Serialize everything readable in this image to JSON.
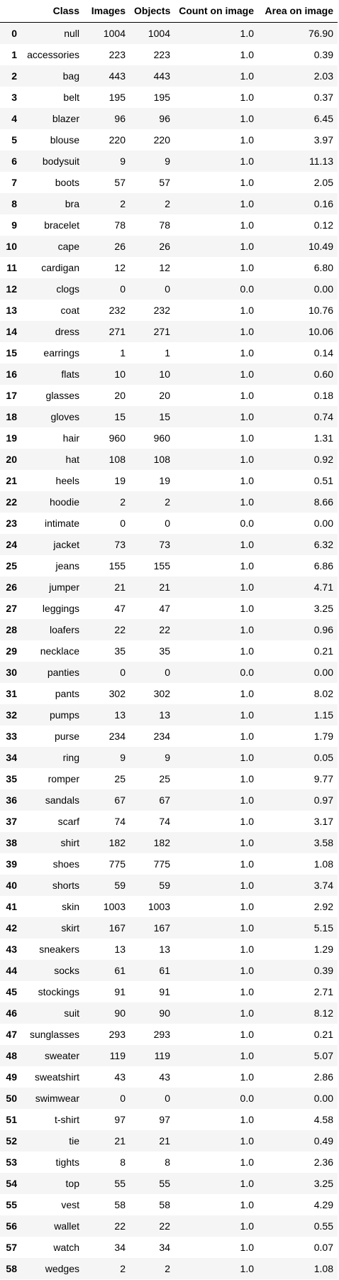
{
  "columns": [
    "",
    "Class",
    "Images",
    "Objects",
    "Count on image",
    "Area on image"
  ],
  "rows": [
    [
      "0",
      "null",
      "1004",
      "1004",
      "1.0",
      "76.90"
    ],
    [
      "1",
      "accessories",
      "223",
      "223",
      "1.0",
      "0.39"
    ],
    [
      "2",
      "bag",
      "443",
      "443",
      "1.0",
      "2.03"
    ],
    [
      "3",
      "belt",
      "195",
      "195",
      "1.0",
      "0.37"
    ],
    [
      "4",
      "blazer",
      "96",
      "96",
      "1.0",
      "6.45"
    ],
    [
      "5",
      "blouse",
      "220",
      "220",
      "1.0",
      "3.97"
    ],
    [
      "6",
      "bodysuit",
      "9",
      "9",
      "1.0",
      "11.13"
    ],
    [
      "7",
      "boots",
      "57",
      "57",
      "1.0",
      "2.05"
    ],
    [
      "8",
      "bra",
      "2",
      "2",
      "1.0",
      "0.16"
    ],
    [
      "9",
      "bracelet",
      "78",
      "78",
      "1.0",
      "0.12"
    ],
    [
      "10",
      "cape",
      "26",
      "26",
      "1.0",
      "10.49"
    ],
    [
      "11",
      "cardigan",
      "12",
      "12",
      "1.0",
      "6.80"
    ],
    [
      "12",
      "clogs",
      "0",
      "0",
      "0.0",
      "0.00"
    ],
    [
      "13",
      "coat",
      "232",
      "232",
      "1.0",
      "10.76"
    ],
    [
      "14",
      "dress",
      "271",
      "271",
      "1.0",
      "10.06"
    ],
    [
      "15",
      "earrings",
      "1",
      "1",
      "1.0",
      "0.14"
    ],
    [
      "16",
      "flats",
      "10",
      "10",
      "1.0",
      "0.60"
    ],
    [
      "17",
      "glasses",
      "20",
      "20",
      "1.0",
      "0.18"
    ],
    [
      "18",
      "gloves",
      "15",
      "15",
      "1.0",
      "0.74"
    ],
    [
      "19",
      "hair",
      "960",
      "960",
      "1.0",
      "1.31"
    ],
    [
      "20",
      "hat",
      "108",
      "108",
      "1.0",
      "0.92"
    ],
    [
      "21",
      "heels",
      "19",
      "19",
      "1.0",
      "0.51"
    ],
    [
      "22",
      "hoodie",
      "2",
      "2",
      "1.0",
      "8.66"
    ],
    [
      "23",
      "intimate",
      "0",
      "0",
      "0.0",
      "0.00"
    ],
    [
      "24",
      "jacket",
      "73",
      "73",
      "1.0",
      "6.32"
    ],
    [
      "25",
      "jeans",
      "155",
      "155",
      "1.0",
      "6.86"
    ],
    [
      "26",
      "jumper",
      "21",
      "21",
      "1.0",
      "4.71"
    ],
    [
      "27",
      "leggings",
      "47",
      "47",
      "1.0",
      "3.25"
    ],
    [
      "28",
      "loafers",
      "22",
      "22",
      "1.0",
      "0.96"
    ],
    [
      "29",
      "necklace",
      "35",
      "35",
      "1.0",
      "0.21"
    ],
    [
      "30",
      "panties",
      "0",
      "0",
      "0.0",
      "0.00"
    ],
    [
      "31",
      "pants",
      "302",
      "302",
      "1.0",
      "8.02"
    ],
    [
      "32",
      "pumps",
      "13",
      "13",
      "1.0",
      "1.15"
    ],
    [
      "33",
      "purse",
      "234",
      "234",
      "1.0",
      "1.79"
    ],
    [
      "34",
      "ring",
      "9",
      "9",
      "1.0",
      "0.05"
    ],
    [
      "35",
      "romper",
      "25",
      "25",
      "1.0",
      "9.77"
    ],
    [
      "36",
      "sandals",
      "67",
      "67",
      "1.0",
      "0.97"
    ],
    [
      "37",
      "scarf",
      "74",
      "74",
      "1.0",
      "3.17"
    ],
    [
      "38",
      "shirt",
      "182",
      "182",
      "1.0",
      "3.58"
    ],
    [
      "39",
      "shoes",
      "775",
      "775",
      "1.0",
      "1.08"
    ],
    [
      "40",
      "shorts",
      "59",
      "59",
      "1.0",
      "3.74"
    ],
    [
      "41",
      "skin",
      "1003",
      "1003",
      "1.0",
      "2.92"
    ],
    [
      "42",
      "skirt",
      "167",
      "167",
      "1.0",
      "5.15"
    ],
    [
      "43",
      "sneakers",
      "13",
      "13",
      "1.0",
      "1.29"
    ],
    [
      "44",
      "socks",
      "61",
      "61",
      "1.0",
      "0.39"
    ],
    [
      "45",
      "stockings",
      "91",
      "91",
      "1.0",
      "2.71"
    ],
    [
      "46",
      "suit",
      "90",
      "90",
      "1.0",
      "8.12"
    ],
    [
      "47",
      "sunglasses",
      "293",
      "293",
      "1.0",
      "0.21"
    ],
    [
      "48",
      "sweater",
      "119",
      "119",
      "1.0",
      "5.07"
    ],
    [
      "49",
      "sweatshirt",
      "43",
      "43",
      "1.0",
      "2.86"
    ],
    [
      "50",
      "swimwear",
      "0",
      "0",
      "0.0",
      "0.00"
    ],
    [
      "51",
      "t-shirt",
      "97",
      "97",
      "1.0",
      "4.58"
    ],
    [
      "52",
      "tie",
      "21",
      "21",
      "1.0",
      "0.49"
    ],
    [
      "53",
      "tights",
      "8",
      "8",
      "1.0",
      "2.36"
    ],
    [
      "54",
      "top",
      "55",
      "55",
      "1.0",
      "3.25"
    ],
    [
      "55",
      "vest",
      "58",
      "58",
      "1.0",
      "4.29"
    ],
    [
      "56",
      "wallet",
      "22",
      "22",
      "1.0",
      "0.55"
    ],
    [
      "57",
      "watch",
      "34",
      "34",
      "1.0",
      "0.07"
    ],
    [
      "58",
      "wedges",
      "2",
      "2",
      "1.0",
      "1.08"
    ]
  ]
}
